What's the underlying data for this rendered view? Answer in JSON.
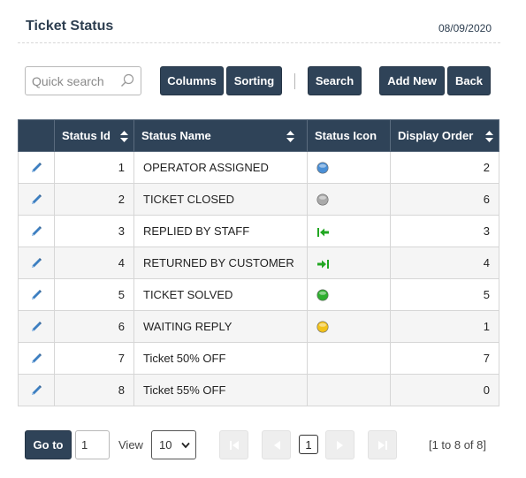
{
  "header": {
    "title": "Ticket Status",
    "date": "08/09/2020"
  },
  "toolbar": {
    "search_placeholder": "Quick search",
    "columns_label": "Columns",
    "sorting_label": "Sorting",
    "search_label": "Search",
    "add_new_label": "Add New",
    "back_label": "Back"
  },
  "table": {
    "headers": {
      "status_id": "Status Id",
      "status_name": "Status Name",
      "status_icon": "Status Icon",
      "display_order": "Display Order"
    },
    "rows": [
      {
        "id": "1",
        "name": "OPERATOR ASSIGNED",
        "icon": "blue-ball-icon",
        "order": "2"
      },
      {
        "id": "2",
        "name": "TICKET CLOSED",
        "icon": "gray-ball-icon",
        "order": "6"
      },
      {
        "id": "3",
        "name": "REPLIED BY STAFF",
        "icon": "arrow-left-bar-icon",
        "order": "3"
      },
      {
        "id": "4",
        "name": "RETURNED BY CUSTOMER",
        "icon": "arrow-right-bar-icon",
        "order": "4"
      },
      {
        "id": "5",
        "name": "TICKET SOLVED",
        "icon": "green-ball-icon",
        "order": "5"
      },
      {
        "id": "6",
        "name": "WAITING REPLY",
        "icon": "yellow-ball-icon",
        "order": "1"
      },
      {
        "id": "7",
        "name": "Ticket 50% OFF",
        "icon": "",
        "order": "7"
      },
      {
        "id": "8",
        "name": "Ticket 55% OFF",
        "icon": "",
        "order": "0"
      }
    ]
  },
  "pager": {
    "goto_label": "Go to",
    "page_value": "1",
    "view_label": "View",
    "view_value": "10",
    "current_page": "1",
    "range_text": "[1 to 8 of 8]"
  },
  "colors": {
    "header_bg": "#2f4358",
    "blue_ball": "#4a8fd6",
    "gray_ball": "#a9a9a9",
    "green_ball": "#2fae2f",
    "yellow_ball": "#f2c21b",
    "green_arrow": "#22a722"
  }
}
